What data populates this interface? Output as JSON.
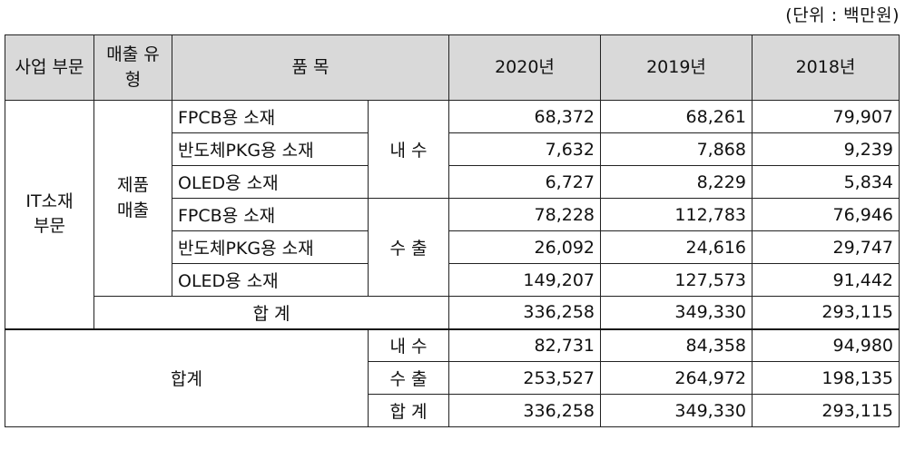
{
  "unit_note": "(단위 : 백만원)",
  "header": {
    "segment": "사업\n부문",
    "sales_type": "매출\n유형",
    "item": "품 목",
    "y2020": "2020년",
    "y2019": "2019년",
    "y2018": "2018년"
  },
  "segment_name": "IT소재\n부문",
  "sales_type_name": "제품\n매출",
  "channels": {
    "domestic": "내 수",
    "export": "수 출"
  },
  "rows": [
    {
      "item": "FPCB용 소재",
      "y2020": "68,372",
      "y2019": "68,261",
      "y2018": "79,907"
    },
    {
      "item": "반도체PKG용 소재",
      "y2020": "7,632",
      "y2019": "7,868",
      "y2018": "9,239"
    },
    {
      "item": "OLED용 소재",
      "y2020": "6,727",
      "y2019": "8,229",
      "y2018": "5,834"
    },
    {
      "item": "FPCB용 소재",
      "y2020": "78,228",
      "y2019": "112,783",
      "y2018": "76,946"
    },
    {
      "item": "반도체PKG용 소재",
      "y2020": "26,092",
      "y2019": "24,616",
      "y2018": "29,747"
    },
    {
      "item": "OLED용 소재",
      "y2020": "149,207",
      "y2019": "127,573",
      "y2018": "91,442"
    }
  ],
  "segment_total": {
    "label": "합 계",
    "y2020": "336,258",
    "y2019": "349,330",
    "y2018": "293,115"
  },
  "grand": {
    "label": "합계",
    "rows": [
      {
        "label": "내 수",
        "y2020": "82,731",
        "y2019": "84,358",
        "y2018": "94,980"
      },
      {
        "label": "수 출",
        "y2020": "253,527",
        "y2019": "264,972",
        "y2018": "198,135"
      },
      {
        "label": "합 계",
        "y2020": "336,258",
        "y2019": "349,330",
        "y2018": "293,115"
      }
    ]
  }
}
